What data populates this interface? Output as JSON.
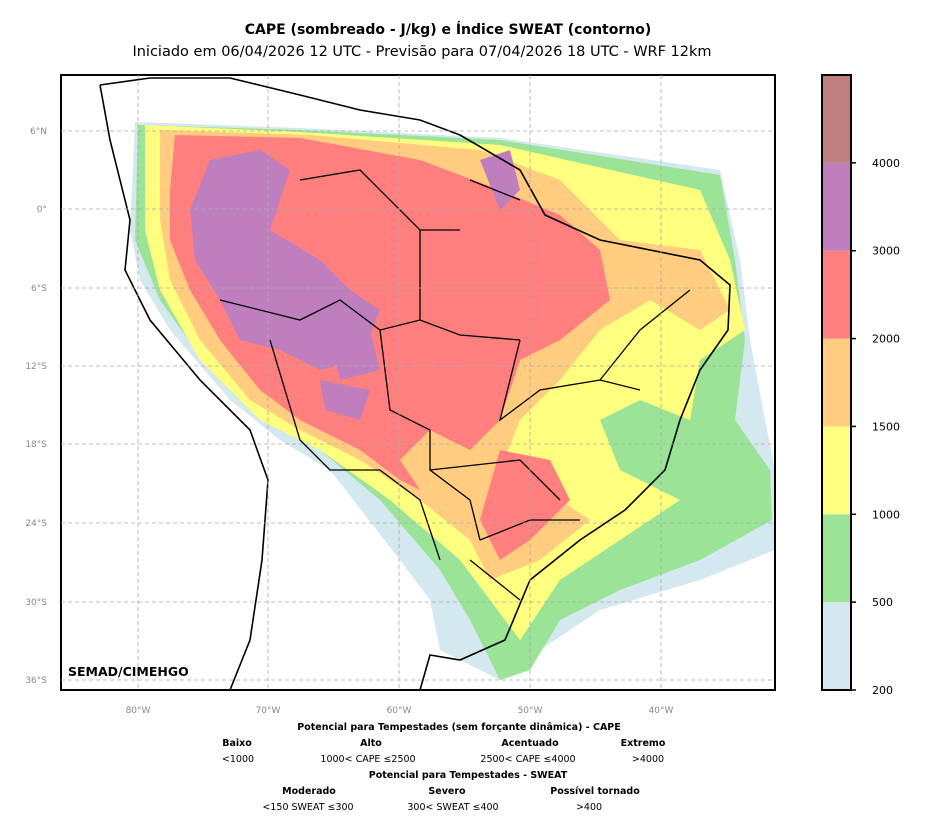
{
  "title": "CAPE (sombreado - J/kg) e Índice SWEAT (contorno)",
  "subtitle": "Iniciado em 06/04/2026 12 UTC - Previsão para 07/04/2026 18 UTC - WRF 12km",
  "watermark": "SEMAD/CIMEHGO",
  "lat_ticks": [
    "6°N",
    "0°",
    "6°S",
    "12°S",
    "18°S",
    "24°S",
    "30°S",
    "36°S"
  ],
  "lon_ticks": [
    "80°W",
    "70°W",
    "60°W",
    "50°W",
    "40°W"
  ],
  "colorbar": {
    "ticks": [
      "200",
      "500",
      "1000",
      "1500",
      "2000",
      "3000",
      "4000"
    ],
    "colors": [
      "#d3e8ef",
      "#9be497",
      "#ffff7f",
      "#ffcc80",
      "#ff7f7f",
      "#bf7fbf",
      "#bf7f7f"
    ]
  },
  "legend": {
    "cape_title": "Potencial para Tempestades (sem forçante dinâmica) - CAPE",
    "cape": [
      {
        "label": "Baixo",
        "range": "<1000"
      },
      {
        "label": "Alto",
        "range": "1000< CAPE ≤2500"
      },
      {
        "label": "Acentuado",
        "range": "2500< CAPE ≤4000"
      },
      {
        "label": "Extremo",
        "range": ">4000"
      }
    ],
    "sweat_title": "Potencial para Tempestades - SWEAT",
    "sweat": [
      {
        "label": "Moderado",
        "range": "<150 SWEAT ≤300"
      },
      {
        "label": "Severo",
        "range": "300< SWEAT ≤400"
      },
      {
        "label": "Possível tornado",
        "range": ">400"
      }
    ]
  }
}
